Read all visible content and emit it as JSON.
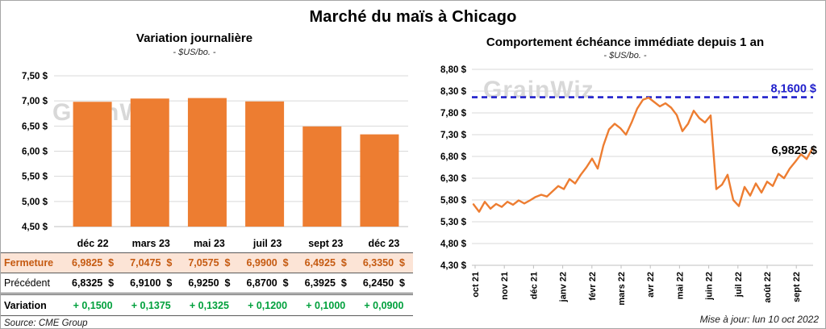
{
  "page_title": "Marché du maïs à Chicago",
  "watermark": "GrainWiz",
  "source_note": "Source: CME Group",
  "updated_note": "Mise à jour: lun 10 oct 2022",
  "colors": {
    "orange": "#ED7D31",
    "blue": "#2020CC",
    "green": "#00A03C",
    "close_row_bg": "#FCE4D6",
    "close_row_text": "#C55A11",
    "gridline": "#D9D9D9",
    "axis": "#BFBFBF",
    "watermark": "#CFCFCF"
  },
  "chart_data": [
    {
      "type": "bar",
      "title": "Variation journalière",
      "subtitle": "- $US/bo. -",
      "categories": [
        "déc 22",
        "mars 23",
        "mai 23",
        "juil 23",
        "sept 23",
        "déc 23"
      ],
      "values": [
        6.9825,
        7.0475,
        7.0575,
        6.99,
        6.4925,
        6.335
      ],
      "ylim": [
        4.5,
        7.5
      ],
      "ytick_labels": [
        "7,50 $",
        "7,00 $",
        "6,50 $",
        "6,00 $",
        "5,50 $",
        "5,00 $",
        "4,50 $"
      ],
      "grid": true,
      "bar_color": "#ED7D31"
    },
    {
      "type": "line",
      "title": "Comportement échéance immédiate depuis 1 an",
      "subtitle": "- $US/bo. -",
      "x_labels": [
        "oct 21",
        "nov 21",
        "déc 21",
        "janv 22",
        "févr 22",
        "mars 22",
        "avr 22",
        "mai 22",
        "juin 22",
        "juil 22",
        "août 22",
        "sept 22"
      ],
      "ylim": [
        4.3,
        8.8
      ],
      "ytick_labels": [
        "8,80 $",
        "8,30 $",
        "7,80 $",
        "7,30 $",
        "6,80 $",
        "6,30 $",
        "5,80 $",
        "5,30 $",
        "4,80 $",
        "4,30 $"
      ],
      "grid": true,
      "line_color": "#ED7D31",
      "values": [
        5.7,
        5.53,
        5.76,
        5.6,
        5.71,
        5.64,
        5.76,
        5.69,
        5.79,
        5.72,
        5.79,
        5.87,
        5.92,
        5.88,
        6.0,
        6.12,
        6.05,
        6.28,
        6.18,
        6.38,
        6.55,
        6.75,
        6.52,
        7.05,
        7.42,
        7.55,
        7.45,
        7.3,
        7.58,
        7.9,
        8.1,
        8.15,
        8.05,
        7.95,
        8.02,
        7.92,
        7.75,
        7.38,
        7.55,
        7.85,
        7.68,
        7.58,
        7.74,
        6.05,
        6.15,
        6.38,
        5.8,
        5.66,
        6.1,
        5.9,
        6.18,
        5.97,
        6.22,
        6.12,
        6.4,
        6.3,
        6.52,
        6.68,
        6.85,
        6.74,
        6.98
      ],
      "reference_line": {
        "value": 8.16,
        "label": "8,1600 $"
      },
      "last_point_label": "6,9825 $",
      "last_point_value": 6.9825
    }
  ],
  "table": {
    "col_headers": [
      "déc 22",
      "mars 23",
      "mai 23",
      "juil 23",
      "sept 23",
      "déc 23"
    ],
    "rows": [
      {
        "label": "Fermeture",
        "values": [
          "6,9825  $",
          "7,0475  $",
          "7,0575  $",
          "6,9900  $",
          "6,4925  $",
          "6,3350  $"
        ]
      },
      {
        "label": "Précédent",
        "values": [
          "6,8325  $",
          "6,9100  $",
          "6,9250  $",
          "6,8700  $",
          "6,3925  $",
          "6,2450  $"
        ]
      },
      {
        "label": "Variation",
        "values": [
          "+ 0,1500",
          "+ 0,1375",
          "+ 0,1325",
          "+ 0,1200",
          "+ 0,1000",
          "+ 0,0900"
        ]
      }
    ]
  }
}
